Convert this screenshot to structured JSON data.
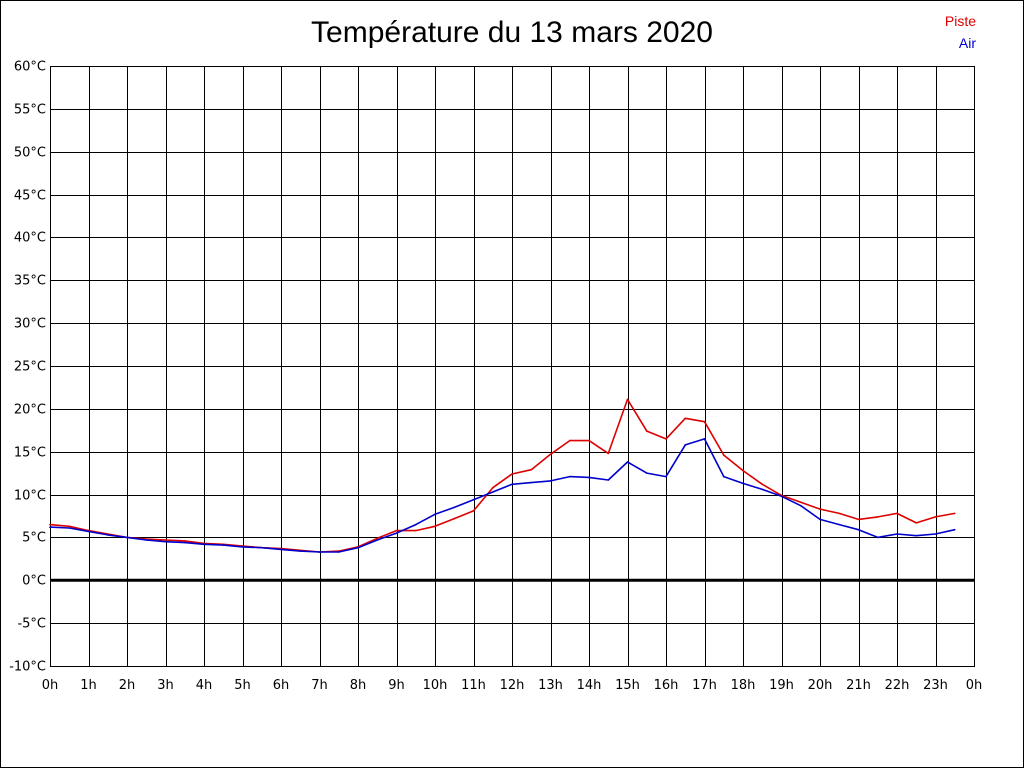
{
  "chart_data": {
    "type": "line",
    "title": "Température du 13 mars 2020",
    "xlabel": "",
    "ylabel": "",
    "x_tick_labels": [
      "0h",
      "1h",
      "2h",
      "3h",
      "4h",
      "5h",
      "6h",
      "7h",
      "8h",
      "9h",
      "10h",
      "11h",
      "12h",
      "13h",
      "14h",
      "15h",
      "16h",
      "17h",
      "18h",
      "19h",
      "20h",
      "21h",
      "22h",
      "23h",
      "0h"
    ],
    "y_tick_labels": [
      "60°C",
      "55°C",
      "50°C",
      "45°C",
      "40°C",
      "35°C",
      "30°C",
      "25°C",
      "20°C",
      "15°C",
      "10°C",
      "5°C",
      "0°C",
      "-5°C",
      "-10°C"
    ],
    "xlim": [
      0,
      24
    ],
    "ylim": [
      -10,
      60
    ],
    "y_step": 5,
    "grid": true,
    "legend_position": "top-right",
    "x": [
      0,
      0.5,
      1,
      1.5,
      2,
      2.5,
      3,
      3.5,
      4,
      4.5,
      5,
      5.5,
      6,
      6.5,
      7,
      7.5,
      8,
      8.5,
      9,
      9.5,
      10,
      10.5,
      11,
      11.5,
      12,
      12.5,
      13,
      13.5,
      14,
      14.5,
      15,
      15.5,
      16,
      16.5,
      17,
      17.5,
      18,
      18.5,
      19,
      19.5,
      20,
      20.5,
      21,
      21.5,
      22,
      22.5,
      23,
      23.5
    ],
    "series": [
      {
        "name": "Piste",
        "color": "#dd0000",
        "values": [
          6.5,
          6.3,
          5.8,
          5.4,
          5.0,
          4.8,
          4.7,
          4.6,
          4.3,
          4.2,
          4.0,
          3.8,
          3.7,
          3.5,
          3.3,
          3.4,
          3.9,
          4.9,
          5.8,
          5.8,
          6.3,
          7.2,
          8.1,
          10.8,
          12.4,
          12.9,
          14.7,
          16.3,
          16.3,
          14.8,
          21.1,
          17.4,
          16.5,
          18.9,
          18.5,
          14.6,
          12.8,
          11.2,
          9.9,
          9.1,
          8.3,
          7.8,
          7.1,
          7.4,
          7.8,
          6.7,
          7.4,
          7.8
        ]
      },
      {
        "name": "Air",
        "color": "#0000cc",
        "values": [
          6.2,
          6.1,
          5.7,
          5.3,
          5.0,
          4.7,
          4.5,
          4.4,
          4.2,
          4.1,
          3.9,
          3.8,
          3.6,
          3.4,
          3.3,
          3.3,
          3.8,
          4.7,
          5.5,
          6.5,
          7.7,
          8.5,
          9.4,
          10.3,
          11.2,
          11.4,
          11.6,
          12.1,
          12.0,
          11.7,
          13.8,
          12.5,
          12.1,
          15.8,
          16.5,
          12.1,
          11.3,
          10.6,
          9.8,
          8.7,
          7.1,
          6.5,
          5.9,
          5.0,
          5.4,
          5.2,
          5.4,
          5.9
        ]
      }
    ]
  }
}
